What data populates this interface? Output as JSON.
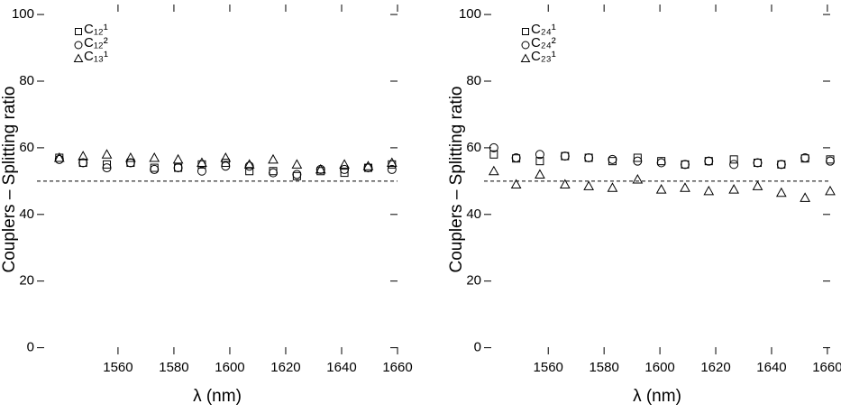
{
  "chart_data": [
    {
      "type": "scatter",
      "x_label": "λ (nm)",
      "y_label": "Couplers – Splitting ratio",
      "xlim": [
        1531,
        1660
      ],
      "ylim": [
        -2,
        103
      ],
      "xticks": [
        1560,
        1580,
        1600,
        1620,
        1640,
        1660
      ],
      "yticks": [
        0,
        20,
        40,
        60,
        80,
        100
      ],
      "reference_line": 50,
      "x": [
        1539,
        1547.5,
        1556,
        1564.5,
        1573,
        1581.5,
        1590,
        1598.5,
        1607,
        1615.5,
        1624,
        1632.5,
        1641,
        1649.5,
        1658
      ],
      "series": [
        {
          "name": "C₁₂¹",
          "marker": "square",
          "color": "#000000",
          "values": [
            57,
            55.5,
            55,
            55.5,
            54,
            54,
            55,
            55.5,
            53,
            53,
            51.5,
            53,
            52.5,
            54,
            55
          ]
        },
        {
          "name": "C₁₂²",
          "marker": "circle",
          "color": "#000000",
          "values": [
            56.5,
            55.5,
            54,
            55.5,
            53.5,
            54,
            53,
            54.5,
            54.5,
            52.5,
            52,
            53.5,
            53.5,
            54,
            53.5
          ]
        },
        {
          "name": "C₁₃¹",
          "marker": "triangle",
          "color": "#000000",
          "values": [
            57,
            57.5,
            58,
            57,
            57,
            56.5,
            55.5,
            57,
            55,
            56.5,
            55,
            53.5,
            55,
            54.5,
            55.5
          ]
        }
      ]
    },
    {
      "type": "scatter",
      "x_label": "λ (nm)",
      "y_label": "Couplers – Splitting ratio",
      "xlim": [
        1537,
        1661
      ],
      "ylim": [
        -2,
        103
      ],
      "xticks": [
        1560,
        1580,
        1600,
        1620,
        1640,
        1660
      ],
      "yticks": [
        0,
        20,
        40,
        60,
        80,
        100
      ],
      "reference_line": 50,
      "x": [
        1540.5,
        1548.5,
        1557,
        1566,
        1574.5,
        1583,
        1592,
        1600.5,
        1609,
        1617.5,
        1626.5,
        1635,
        1643.5,
        1652,
        1661
      ],
      "series": [
        {
          "name": "C₂₄¹",
          "marker": "square",
          "color": "#000000",
          "values": [
            58,
            56.8,
            56,
            57.5,
            57,
            56,
            57,
            56,
            55,
            56,
            56.5,
            55.5,
            55,
            56.8,
            56.5
          ]
        },
        {
          "name": "C₂₄²",
          "marker": "circle",
          "color": "#000000",
          "values": [
            60,
            57,
            58,
            57.5,
            57,
            56.5,
            56,
            55.5,
            55,
            56,
            55,
            55.5,
            55,
            57,
            56
          ]
        },
        {
          "name": "C₂₃¹",
          "marker": "triangle",
          "color": "#000000",
          "values": [
            53,
            49,
            52,
            49,
            48.5,
            48,
            50.5,
            47.5,
            48,
            47,
            47.5,
            48.5,
            46.5,
            45,
            47
          ]
        }
      ]
    }
  ]
}
